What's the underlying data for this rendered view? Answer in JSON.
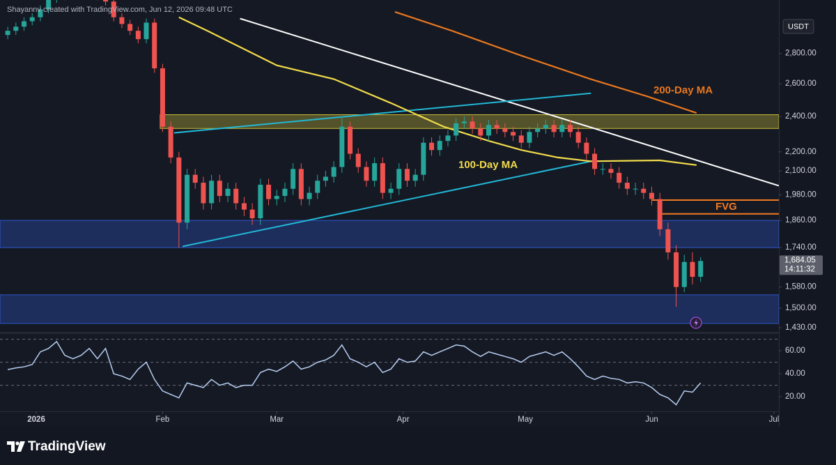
{
  "chart_data": {
    "type": "candlestick",
    "attribution": "Shayannv created with TradingView.com, Jun 12, 2026 09:48 UTC",
    "currency": "USDT",
    "branding": "TradingView",
    "log_scale": true,
    "up_color": "#26a69a",
    "down_color": "#ef5350",
    "xlim": [
      -8.9,
      182.2
    ],
    "xticks": [
      {
        "value": 0,
        "label": "2026"
      },
      {
        "value": 31,
        "label": "Feb"
      },
      {
        "value": 59,
        "label": "Mar"
      },
      {
        "value": 90,
        "label": "Apr"
      },
      {
        "value": 120,
        "label": "May"
      },
      {
        "value": 151,
        "label": "Jun"
      },
      {
        "value": 181,
        "label": "Jul"
      }
    ],
    "ylim": [
      1418,
      3192
    ],
    "yticks": [
      {
        "value": 1430,
        "label": "1,430.00"
      },
      {
        "value": 1500,
        "label": "1,500.00"
      },
      {
        "value": 1580,
        "label": "1,580.00"
      },
      {
        "value": 1740,
        "label": "1,740.00"
      },
      {
        "value": 1860,
        "label": "1,860.00"
      },
      {
        "value": 1980,
        "label": "1,980.00"
      },
      {
        "value": 2100,
        "label": "2,100.00"
      },
      {
        "value": 2200,
        "label": "2,200.00"
      },
      {
        "value": 2400,
        "label": "2,400.00"
      },
      {
        "value": 2600,
        "label": "2,600.00"
      },
      {
        "value": 2800,
        "label": "2,800.00"
      }
    ],
    "x": [
      -7,
      -5,
      -3,
      -1,
      1,
      3,
      5,
      7,
      9,
      11,
      13,
      15,
      17,
      19,
      21,
      23,
      25,
      27,
      29,
      31,
      33,
      35,
      37,
      39,
      41,
      43,
      45,
      47,
      49,
      51,
      53,
      55,
      57,
      59,
      61,
      63,
      65,
      67,
      69,
      71,
      73,
      75,
      77,
      79,
      81,
      83,
      85,
      87,
      89,
      91,
      93,
      95,
      97,
      99,
      101,
      103,
      105,
      107,
      109,
      111,
      113,
      115,
      117,
      119,
      121,
      123,
      125,
      127,
      129,
      131,
      133,
      135,
      137,
      139,
      141,
      143,
      145,
      147,
      149,
      151,
      153,
      155,
      157,
      159,
      161,
      163
    ],
    "open": [
      2930,
      2960,
      2990,
      3030,
      3060,
      3120,
      3200,
      3220,
      3240,
      3250,
      3230,
      3240,
      3220,
      3180,
      3060,
      3010,
      2960,
      2900,
      3020,
      2700,
      2340,
      2170,
      1850,
      2080,
      2040,
      1940,
      2050,
      1975,
      2010,
      1940,
      1910,
      1870,
      2030,
      1960,
      1975,
      2010,
      2110,
      1960,
      1990,
      2050,
      2070,
      2120,
      2340,
      2190,
      2120,
      2050,
      2140,
      1990,
      2010,
      2110,
      2050,
      2080,
      2250,
      2210,
      2260,
      2290,
      2360,
      2370,
      2330,
      2290,
      2350,
      2330,
      2310,
      2290,
      2250,
      2310,
      2330,
      2350,
      2310,
      2350,
      2310,
      2250,
      2190,
      2110,
      2110,
      2090,
      2040,
      2010,
      2010,
      1990,
      1960,
      1820,
      1720,
      1580,
      1680,
      1620
    ],
    "high": [
      2990,
      3020,
      3060,
      3090,
      3150,
      3230,
      3250,
      3270,
      3280,
      3280,
      3270,
      3270,
      3250,
      3210,
      3090,
      3040,
      2990,
      3050,
      3050,
      2730,
      2370,
      2200,
      2110,
      2110,
      2070,
      2080,
      2080,
      2040,
      2040,
      1970,
      1940,
      2060,
      2060,
      2005,
      2040,
      2140,
      2140,
      2020,
      2080,
      2100,
      2150,
      2400,
      2370,
      2220,
      2150,
      2170,
      2170,
      2040,
      2140,
      2140,
      2110,
      2280,
      2280,
      2290,
      2320,
      2390,
      2400,
      2400,
      2360,
      2380,
      2380,
      2360,
      2340,
      2320,
      2340,
      2360,
      2380,
      2380,
      2380,
      2380,
      2340,
      2280,
      2220,
      2140,
      2140,
      2120,
      2070,
      2040,
      2040,
      2020,
      1990,
      1850,
      1750,
      1710,
      1720,
      1700
    ],
    "low": [
      2900,
      2930,
      2960,
      3000,
      3030,
      3090,
      3170,
      3190,
      3210,
      3200,
      3200,
      3190,
      3150,
      3030,
      2980,
      2930,
      2870,
      2870,
      2670,
      2310,
      2140,
      1740,
      1820,
      2010,
      1910,
      1910,
      1945,
      1945,
      1910,
      1880,
      1840,
      1840,
      1930,
      1930,
      1945,
      1980,
      1930,
      1930,
      1960,
      2020,
      2040,
      2090,
      2160,
      2090,
      2020,
      2020,
      1960,
      1960,
      1980,
      2020,
      2020,
      2050,
      2180,
      2180,
      2230,
      2260,
      2330,
      2300,
      2260,
      2260,
      2300,
      2280,
      2260,
      2220,
      2220,
      2280,
      2300,
      2280,
      2280,
      2280,
      2220,
      2160,
      2080,
      2080,
      2060,
      2010,
      1980,
      1980,
      1960,
      1930,
      1790,
      1690,
      1505,
      1560,
      1590,
      1600
    ],
    "close": [
      2960,
      2990,
      3030,
      3060,
      3120,
      3200,
      3220,
      3240,
      3250,
      3230,
      3240,
      3220,
      3180,
      3060,
      3010,
      2960,
      2900,
      3020,
      2700,
      2340,
      2170,
      1850,
      2080,
      2040,
      1940,
      2050,
      1975,
      2010,
      1940,
      1910,
      1870,
      2030,
      1960,
      1975,
      2010,
      2110,
      1960,
      1990,
      2050,
      2070,
      2120,
      2340,
      2190,
      2120,
      2050,
      2140,
      1990,
      2010,
      2110,
      2050,
      2080,
      2250,
      2210,
      2260,
      2290,
      2360,
      2370,
      2330,
      2290,
      2350,
      2330,
      2310,
      2290,
      2250,
      2310,
      2330,
      2350,
      2310,
      2350,
      2310,
      2250,
      2190,
      2110,
      2110,
      2090,
      2040,
      2010,
      2010,
      1990,
      1960,
      1820,
      1720,
      1580,
      1680,
      1620,
      1684.05
    ],
    "last_price": {
      "value": 1684.05,
      "label": "1,684.05"
    },
    "countdown": "14:11:32",
    "overlays": [
      {
        "name": "200-Day MA",
        "color": "#e8771e",
        "x": [
          88,
          102,
          119,
          136,
          150,
          162
        ],
        "values": [
          3100,
          2960,
          2785,
          2630,
          2520,
          2420
        ]
      },
      {
        "name": "100-Day MA",
        "color": "#f2dc4b",
        "x": [
          35,
          42,
          59,
          73,
          87,
          100,
          111,
          119,
          128,
          136,
          153,
          162
        ],
        "values": [
          3060,
          2960,
          2720,
          2630,
          2480,
          2340,
          2260,
          2210,
          2170,
          2150,
          2155,
          2130
        ]
      }
    ],
    "trendlines": [
      {
        "color": "#ffffff",
        "x": [
          50,
          182.2
        ],
        "values": [
          3050,
          2025
        ]
      },
      {
        "color": "#22b8d6",
        "x": [
          33.8,
          136.1
        ],
        "values": [
          2305,
          2540
        ]
      },
      {
        "color": "#22b8d6",
        "x": [
          35.9,
          136.1
        ],
        "values": [
          1745,
          2150
        ]
      }
    ],
    "zones": [
      {
        "color": "#c9bd3a",
        "x": [
          30.4,
          182.2
        ],
        "values": [
          2330,
          2410
        ]
      },
      {
        "color": "#2f55c8",
        "x": [
          -8.9,
          182.2
        ],
        "values": [
          1740,
          1860
        ]
      },
      {
        "color": "#2f55c8",
        "x": [
          -8.9,
          182.2
        ],
        "values": [
          1445,
          1550
        ]
      }
    ],
    "fvg": {
      "label": "FVG",
      "color": "#f07a22",
      "x": [
        151,
        182.2
      ],
      "values": [
        1955,
        1890
      ]
    },
    "rsi": {
      "color": "#b7cff2",
      "ylim": [
        7.3,
        74
      ],
      "yticks": [
        {
          "value": 20,
          "label": "20.00"
        },
        {
          "value": 40,
          "label": "40.00"
        },
        {
          "value": 60,
          "label": "60.00"
        }
      ],
      "levels": [
        70,
        50,
        30
      ],
      "values": [
        43.6,
        45,
        46,
        48,
        59,
        62,
        68,
        56,
        53,
        56,
        62,
        53,
        62,
        40,
        38,
        35,
        44,
        50,
        35,
        25,
        22,
        19,
        32,
        30,
        28,
        35,
        30,
        32,
        28,
        30,
        30,
        41,
        44,
        42,
        46,
        51,
        44,
        46,
        50,
        52,
        56,
        65,
        53,
        50,
        46,
        50,
        41,
        44,
        53,
        50,
        51,
        59,
        56,
        59,
        62,
        65,
        64,
        59,
        55,
        59,
        57,
        55,
        53,
        50,
        55,
        57,
        59,
        56,
        59,
        53,
        46,
        38,
        35,
        38,
        36,
        35,
        32,
        33,
        32,
        28,
        22,
        19,
        13,
        25,
        24,
        32
      ]
    }
  }
}
